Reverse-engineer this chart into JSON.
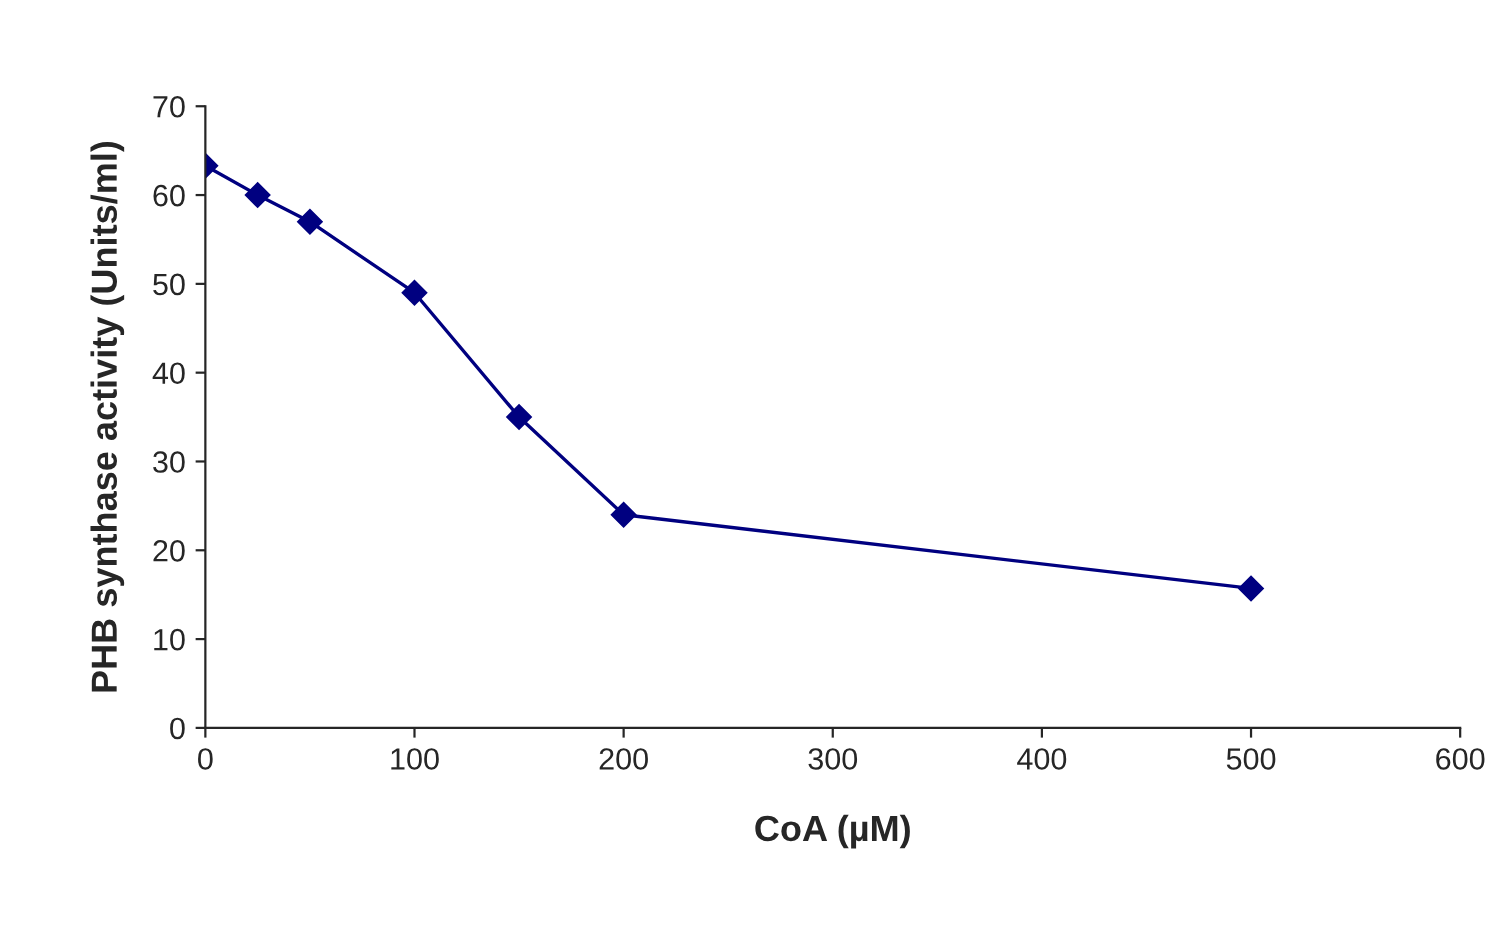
{
  "chart_data": {
    "type": "line",
    "xlabel": "CoA (µM)",
    "ylabel": "PHB synthase activity (Units/ml)",
    "x": [
      0,
      25,
      50,
      100,
      150,
      200,
      500
    ],
    "series": [
      {
        "color": "#000080",
        "values": [
          63.3,
          60,
          57,
          49,
          35,
          24,
          15.7
        ]
      }
    ],
    "xlim": [
      0,
      600
    ],
    "xticks": [
      0,
      100,
      200,
      300,
      400,
      500,
      600
    ],
    "ylim": [
      0,
      70
    ],
    "yticks": [
      0,
      10,
      20,
      30,
      40,
      50,
      60,
      70
    ],
    "marker": "diamond",
    "line_style": "solid",
    "grid": false,
    "legend": false
  }
}
